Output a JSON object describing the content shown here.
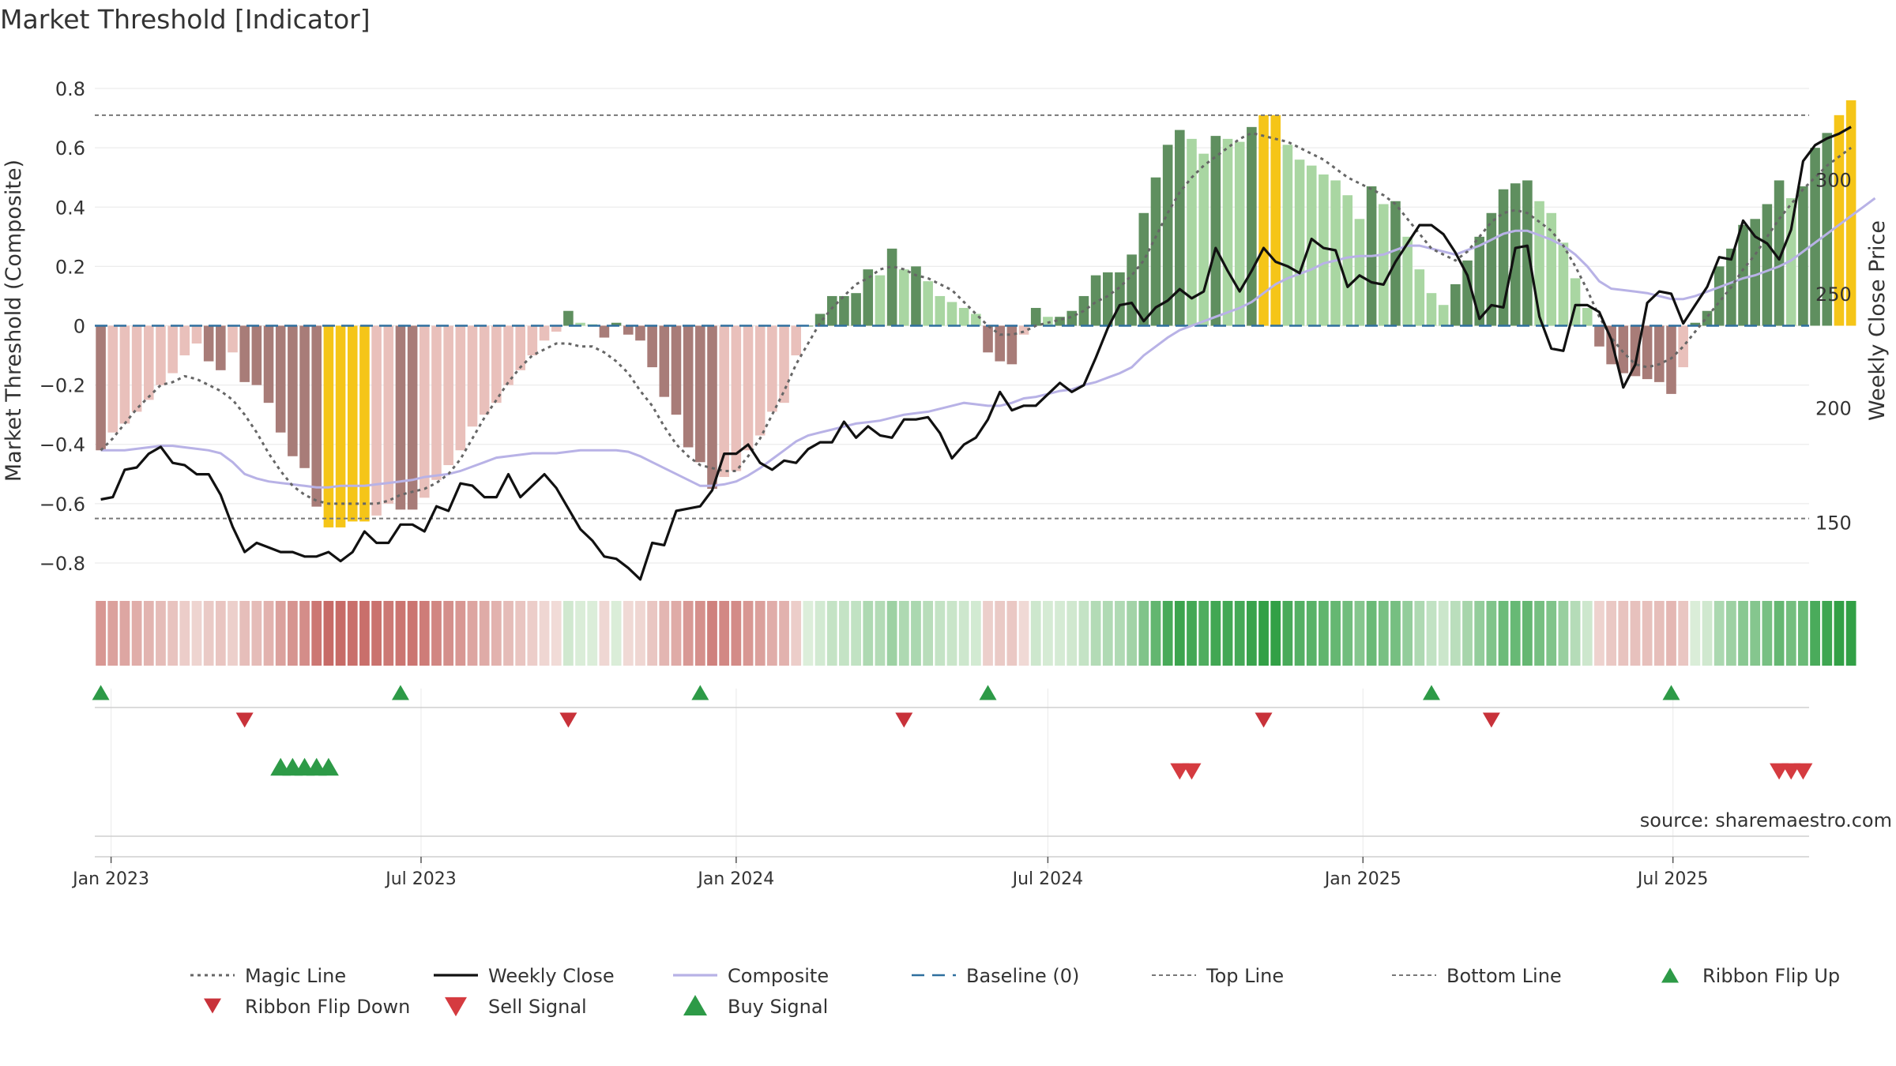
{
  "chart_data": {
    "type": "bar",
    "title": "Market Threshold [Indicator]",
    "ylabel_left": "Market Threshold (Composite)",
    "ylabel_right": "Weekly Close Price",
    "source": "source: sharemaestro.com",
    "y_left": {
      "lim": [
        -0.84,
        0.84
      ],
      "ticks": [
        0.8,
        0.6,
        0.4,
        0.2,
        0,
        -0.2,
        -0.4,
        -0.6,
        -0.8
      ],
      "tick_labels": [
        "0.8",
        "0.6",
        "0.4",
        "0.2",
        "0",
        "−0.2",
        "−0.4",
        "−0.6",
        "−0.8"
      ]
    },
    "y_right": {
      "lim": [
        127,
        345
      ],
      "ticks": [
        300,
        250,
        200,
        150
      ],
      "tick_labels": [
        "300",
        "250",
        "200",
        "150"
      ]
    },
    "x_ticks": [
      {
        "date": "2023-01-01",
        "label": "Jan 2023"
      },
      {
        "date": "2023-07-01",
        "label": "Jul 2023"
      },
      {
        "date": "2024-01-01",
        "label": "Jan 2024"
      },
      {
        "date": "2024-07-01",
        "label": "Jul 2024"
      },
      {
        "date": "2025-01-01",
        "label": "Jan 2025"
      },
      {
        "date": "2025-07-01",
        "label": "Jul 2025"
      }
    ],
    "top_line": 0.71,
    "bottom_line": -0.65,
    "baseline": 0,
    "weeks": {
      "count": 143,
      "first": "2022-12-26",
      "last": "2025-09-22",
      "step_days": 7
    },
    "colors": {
      "bar_strong_up": "#5f8f5f",
      "bar_weak_up": "#a9d6a2",
      "bar_strong_down": "#a87c78",
      "bar_weak_down": "#e9c0bb",
      "bar_extreme": "#f5c518",
      "weekly_close": "#111111",
      "composite": "#b8b2e6",
      "magic_line": "#666666",
      "baseline": "#2e6f9e",
      "threshold_lines": "#777777",
      "buy": "#2d9a47",
      "sell": "#d53b40"
    },
    "composite_bars": [
      -0.42,
      -0.36,
      -0.33,
      -0.29,
      -0.25,
      -0.2,
      -0.16,
      -0.1,
      -0.06,
      -0.12,
      -0.15,
      -0.09,
      -0.19,
      -0.2,
      -0.26,
      -0.36,
      -0.44,
      -0.48,
      -0.61,
      -0.68,
      -0.68,
      -0.66,
      -0.66,
      -0.64,
      -0.6,
      -0.62,
      -0.62,
      -0.58,
      -0.52,
      -0.47,
      -0.42,
      -0.34,
      -0.3,
      -0.26,
      -0.2,
      -0.15,
      -0.1,
      -0.05,
      -0.02,
      0.05,
      0.01,
      0.005,
      -0.04,
      0.01,
      -0.03,
      -0.05,
      -0.14,
      -0.24,
      -0.3,
      -0.41,
      -0.46,
      -0.55,
      -0.51,
      -0.49,
      -0.42,
      -0.37,
      -0.29,
      -0.26,
      -0.1,
      0.0,
      0.04,
      0.1,
      0.1,
      0.11,
      0.19,
      0.17,
      0.26,
      0.19,
      0.2,
      0.15,
      0.1,
      0.08,
      0.06,
      0.04,
      -0.09,
      -0.12,
      -0.13,
      -0.03,
      0.06,
      0.03,
      0.03,
      0.05,
      0.1,
      0.17,
      0.18,
      0.18,
      0.24,
      0.38,
      0.5,
      0.61,
      0.66,
      0.63,
      0.58,
      0.64,
      0.63,
      0.62,
      0.67,
      0.71,
      0.71,
      0.61,
      0.56,
      0.54,
      0.51,
      0.49,
      0.44,
      0.36,
      0.47,
      0.41,
      0.42,
      0.3,
      0.19,
      0.11,
      0.07,
      0.14,
      0.22,
      0.3,
      0.38,
      0.46,
      0.48,
      0.49,
      0.42,
      0.38,
      0.28,
      0.16,
      0.06,
      -0.07,
      -0.13,
      -0.16,
      -0.17,
      -0.18,
      -0.19,
      -0.23,
      -0.14,
      0.01,
      0.05,
      0.2,
      0.26,
      0.34,
      0.36,
      0.41,
      0.49,
      0.43,
      0.47,
      0.6,
      0.65,
      0.71,
      0.76
    ],
    "weekly_close": [
      160,
      161,
      173,
      174,
      180,
      183,
      176,
      175,
      171,
      171,
      162,
      148,
      137,
      141,
      139,
      137,
      137,
      135,
      135,
      137,
      133,
      137,
      146,
      141,
      141,
      149,
      149,
      146,
      157,
      155,
      167,
      166,
      161,
      161,
      171,
      161,
      166,
      171,
      165,
      156,
      147,
      142,
      135,
      134,
      130,
      125,
      141,
      140,
      155,
      156,
      157,
      164,
      180,
      180,
      184,
      176,
      173,
      177,
      176,
      182,
      185,
      185,
      194,
      187,
      192,
      188,
      187,
      195,
      195,
      196,
      189,
      178,
      184,
      187,
      195,
      207,
      199,
      201,
      201,
      206,
      211,
      207,
      210,
      222,
      235,
      245,
      246,
      238,
      244,
      247,
      252,
      248,
      251,
      270,
      260,
      251,
      260,
      270,
      264,
      262,
      259,
      274,
      270,
      269,
      253,
      258,
      255,
      254,
      264,
      272,
      280,
      280,
      276,
      268,
      258,
      239,
      245,
      244,
      270,
      271,
      240,
      226,
      225,
      245,
      245,
      242,
      230,
      209,
      219,
      246,
      251,
      250,
      237,
      245,
      253,
      266,
      265,
      282,
      275,
      272,
      265,
      278,
      308,
      315,
      318,
      320,
      323
    ],
    "composite_line": [
      -0.42,
      -0.42,
      -0.42,
      -0.415,
      -0.41,
      -0.405,
      -0.405,
      -0.41,
      -0.415,
      -0.42,
      -0.43,
      -0.46,
      -0.5,
      -0.515,
      -0.525,
      -0.53,
      -0.535,
      -0.54,
      -0.545,
      -0.545,
      -0.54,
      -0.54,
      -0.54,
      -0.535,
      -0.53,
      -0.525,
      -0.52,
      -0.51,
      -0.505,
      -0.5,
      -0.49,
      -0.475,
      -0.46,
      -0.445,
      -0.44,
      -0.435,
      -0.43,
      -0.43,
      -0.43,
      -0.425,
      -0.42,
      -0.42,
      -0.42,
      -0.42,
      -0.425,
      -0.44,
      -0.46,
      -0.48,
      -0.5,
      -0.52,
      -0.54,
      -0.54,
      -0.535,
      -0.525,
      -0.505,
      -0.48,
      -0.45,
      -0.42,
      -0.39,
      -0.37,
      -0.36,
      -0.35,
      -0.34,
      -0.33,
      -0.325,
      -0.32,
      -0.31,
      -0.3,
      -0.295,
      -0.29,
      -0.28,
      -0.27,
      -0.26,
      -0.265,
      -0.27,
      -0.27,
      -0.26,
      -0.245,
      -0.24,
      -0.23,
      -0.22,
      -0.215,
      -0.2,
      -0.19,
      -0.175,
      -0.16,
      -0.14,
      -0.1,
      -0.07,
      -0.04,
      -0.015,
      0.0,
      0.015,
      0.03,
      0.045,
      0.06,
      0.08,
      0.11,
      0.14,
      0.16,
      0.175,
      0.19,
      0.21,
      0.22,
      0.23,
      0.235,
      0.235,
      0.24,
      0.255,
      0.27,
      0.27,
      0.26,
      0.25,
      0.24,
      0.255,
      0.27,
      0.29,
      0.31,
      0.32,
      0.32,
      0.305,
      0.29,
      0.27,
      0.24,
      0.2,
      0.15,
      0.125,
      0.12,
      0.115,
      0.11,
      0.1,
      0.09,
      0.09,
      0.1,
      0.115,
      0.13,
      0.145,
      0.16,
      0.17,
      0.185,
      0.2,
      0.22,
      0.25,
      0.28,
      0.31,
      0.34,
      0.37,
      0.4,
      0.43
    ],
    "magic_line": [
      -0.42,
      -0.38,
      -0.33,
      -0.28,
      -0.24,
      -0.2,
      -0.19,
      -0.17,
      -0.18,
      -0.2,
      -0.22,
      -0.25,
      -0.3,
      -0.36,
      -0.43,
      -0.49,
      -0.54,
      -0.57,
      -0.59,
      -0.6,
      -0.6,
      -0.6,
      -0.6,
      -0.6,
      -0.59,
      -0.57,
      -0.56,
      -0.55,
      -0.53,
      -0.5,
      -0.45,
      -0.38,
      -0.31,
      -0.25,
      -0.19,
      -0.14,
      -0.1,
      -0.08,
      -0.06,
      -0.06,
      -0.07,
      -0.07,
      -0.09,
      -0.12,
      -0.16,
      -0.22,
      -0.27,
      -0.34,
      -0.4,
      -0.44,
      -0.47,
      -0.48,
      -0.49,
      -0.49,
      -0.44,
      -0.38,
      -0.3,
      -0.22,
      -0.13,
      -0.06,
      0.01,
      0.06,
      0.1,
      0.14,
      0.16,
      0.19,
      0.2,
      0.19,
      0.17,
      0.16,
      0.14,
      0.12,
      0.08,
      0.04,
      0.0,
      -0.03,
      -0.03,
      -0.02,
      0.0,
      0.01,
      0.02,
      0.03,
      0.05,
      0.08,
      0.1,
      0.13,
      0.17,
      0.22,
      0.3,
      0.38,
      0.45,
      0.5,
      0.54,
      0.57,
      0.6,
      0.63,
      0.65,
      0.64,
      0.63,
      0.62,
      0.6,
      0.58,
      0.56,
      0.53,
      0.5,
      0.48,
      0.46,
      0.44,
      0.41,
      0.36,
      0.31,
      0.26,
      0.24,
      0.22,
      0.25,
      0.3,
      0.35,
      0.38,
      0.39,
      0.38,
      0.35,
      0.32,
      0.27,
      0.2,
      0.12,
      0.03,
      -0.04,
      -0.09,
      -0.13,
      -0.14,
      -0.13,
      -0.11,
      -0.07,
      -0.02,
      0.03,
      0.08,
      0.13,
      0.19,
      0.24,
      0.3,
      0.36,
      0.41,
      0.46,
      0.5,
      0.54,
      0.57,
      0.6
    ],
    "ribbon_flip_up_weeks": [
      1,
      26,
      51,
      75,
      112,
      132
    ],
    "ribbon_flip_down_weeks": [
      13,
      40,
      68,
      98,
      117
    ],
    "buy_signal_weeks": [
      16,
      17,
      18,
      19,
      20
    ],
    "sell_signal_weeks": [
      91,
      92,
      141,
      142,
      143
    ],
    "legend": [
      {
        "label": "Magic Line",
        "kind": "dotted",
        "color": "#666666"
      },
      {
        "label": "Weekly Close",
        "kind": "solid",
        "color": "#111111"
      },
      {
        "label": "Composite",
        "kind": "solid",
        "color": "#b8b2e6"
      },
      {
        "label": "Baseline (0)",
        "kind": "dashed",
        "color": "#2e6f9e"
      },
      {
        "label": "Top Line",
        "kind": "dashed-thin",
        "color": "#777777"
      },
      {
        "label": "Bottom Line",
        "kind": "dashed-thin",
        "color": "#777777"
      },
      {
        "label": "Ribbon Flip Up",
        "kind": "tri-up",
        "color": "#2d9a47"
      },
      {
        "label": "Ribbon Flip Down",
        "kind": "tri-down",
        "color": "#c8323a"
      },
      {
        "label": "Sell Signal",
        "kind": "tri-down-big",
        "color": "#d53b40"
      },
      {
        "label": "Buy Signal",
        "kind": "tri-up-big",
        "color": "#2d9a47"
      }
    ]
  }
}
